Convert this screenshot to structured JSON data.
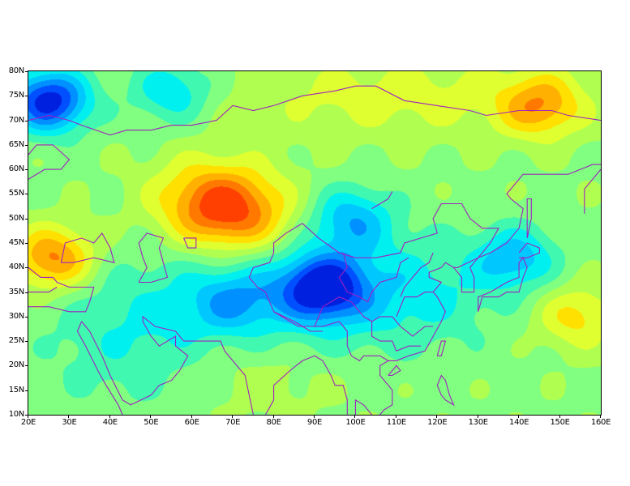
{
  "chart_data": {
    "type": "heatmap",
    "title": "",
    "xlabel": "",
    "ylabel": "",
    "xlim": [
      20,
      160
    ],
    "ylim": [
      10,
      80
    ],
    "x_ticks": [
      "20E",
      "30E",
      "40E",
      "50E",
      "60E",
      "70E",
      "80E",
      "90E",
      "100E",
      "110E",
      "120E",
      "130E",
      "140E",
      "150E",
      "160E"
    ],
    "y_ticks": [
      "10N",
      "15N",
      "20N",
      "25N",
      "30N",
      "35N",
      "40N",
      "45N",
      "50N",
      "55N",
      "60N",
      "65N",
      "70N",
      "75N",
      "80N"
    ],
    "colormap": [
      "#0020e0",
      "#0050ff",
      "#0090ff",
      "#00c8ff",
      "#00f0f0",
      "#40f8b0",
      "#80ff80",
      "#b0ff50",
      "#e0ff30",
      "#ffe000",
      "#ffb000",
      "#ff7800",
      "#ff4000"
    ],
    "coastline_color": "#a020c0",
    "features": [
      {
        "kind": "negative",
        "lon": 25,
        "lat": 74,
        "strength": -1.0
      },
      {
        "kind": "negative",
        "lon": 92,
        "lat": 36,
        "strength": -0.85
      },
      {
        "kind": "negative",
        "lon": 99,
        "lat": 50,
        "strength": -0.5
      },
      {
        "kind": "negative",
        "lon": 139,
        "lat": 42,
        "strength": -0.5
      },
      {
        "kind": "negative",
        "lon": 55,
        "lat": 76,
        "strength": -0.45
      },
      {
        "kind": "negative",
        "lon": 70,
        "lat": 33,
        "strength": -0.35
      },
      {
        "kind": "positive",
        "lon": 68,
        "lat": 52,
        "strength": 1.0
      },
      {
        "kind": "positive",
        "lon": 26,
        "lat": 42,
        "strength": 0.7
      },
      {
        "kind": "positive",
        "lon": 145,
        "lat": 73,
        "strength": 0.55
      },
      {
        "kind": "positive",
        "lon": 154,
        "lat": 30,
        "strength": 0.4
      }
    ]
  }
}
